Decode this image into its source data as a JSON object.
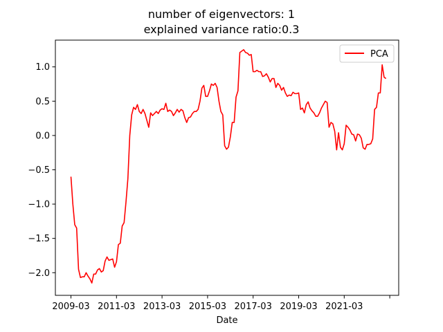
{
  "chart_data": {
    "type": "line",
    "title": "number of eigenvectors: 1",
    "subtitle": "explained variance ratio:0.3",
    "xlabel": "Date",
    "ylabel": "",
    "x_ticks": [
      "2009-03",
      "2011-03",
      "2013-03",
      "2015-03",
      "2017-03",
      "2019-03",
      "2021-03",
      ""
    ],
    "y_ticks": [
      "1.0",
      "0.5",
      "0.0",
      "−0.5",
      "−1.0",
      "−1.5",
      "−2.0"
    ],
    "ylim": [
      -2.33,
      1.39
    ],
    "grid": false,
    "legend_position": "top-right",
    "series": [
      {
        "name": "PCA",
        "color": "#ff0000",
        "x": [
          "2009-03",
          "2009-04",
          "2009-05",
          "2009-06",
          "2009-07",
          "2009-08",
          "2009-09",
          "2009-10",
          "2009-11",
          "2009-12",
          "2010-01",
          "2010-02",
          "2010-03",
          "2010-04",
          "2010-05",
          "2010-06",
          "2010-07",
          "2010-08",
          "2010-09",
          "2010-10",
          "2010-11",
          "2010-12",
          "2011-01",
          "2011-02",
          "2011-03",
          "2011-04",
          "2011-05",
          "2011-06",
          "2011-07",
          "2011-08",
          "2011-09",
          "2011-10",
          "2011-11",
          "2011-12",
          "2012-01",
          "2012-02",
          "2012-03",
          "2012-04",
          "2012-05",
          "2012-06",
          "2012-07",
          "2012-08",
          "2012-09",
          "2012-10",
          "2012-11",
          "2012-12",
          "2013-01",
          "2013-02",
          "2013-03",
          "2013-04",
          "2013-05",
          "2013-06",
          "2013-07",
          "2013-08",
          "2013-09",
          "2013-10",
          "2013-11",
          "2013-12",
          "2014-01",
          "2014-02",
          "2014-03",
          "2014-04",
          "2014-05",
          "2014-06",
          "2014-07",
          "2014-08",
          "2014-09",
          "2014-10",
          "2014-11",
          "2014-12",
          "2015-01",
          "2015-02",
          "2015-03",
          "2015-04",
          "2015-05",
          "2015-06",
          "2015-07",
          "2015-08",
          "2015-09",
          "2015-10",
          "2015-11",
          "2015-12",
          "2016-01",
          "2016-02",
          "2016-03",
          "2016-04",
          "2016-05",
          "2016-06",
          "2016-07",
          "2016-08",
          "2016-09",
          "2016-10",
          "2016-11",
          "2016-12",
          "2017-01",
          "2017-02",
          "2017-03",
          "2017-04",
          "2017-05",
          "2017-06",
          "2017-07",
          "2017-08",
          "2017-09",
          "2017-10",
          "2017-11",
          "2017-12",
          "2018-01",
          "2018-02",
          "2018-03",
          "2018-04",
          "2018-05",
          "2018-06",
          "2018-07",
          "2018-08",
          "2018-09",
          "2018-10",
          "2018-11",
          "2018-12",
          "2019-01",
          "2019-02",
          "2019-03",
          "2019-04",
          "2019-05",
          "2019-06",
          "2019-07",
          "2019-08",
          "2019-09",
          "2019-10",
          "2019-11",
          "2019-12",
          "2020-01",
          "2020-02",
          "2020-03",
          "2020-04",
          "2020-05",
          "2020-06",
          "2020-07",
          "2020-08",
          "2020-09",
          "2020-10",
          "2020-11",
          "2020-12",
          "2021-01",
          "2021-02",
          "2021-03",
          "2021-04",
          "2021-05",
          "2021-06",
          "2021-07",
          "2021-08",
          "2021-09",
          "2021-10",
          "2021-11",
          "2021-12",
          "2022-01",
          "2022-02",
          "2022-03",
          "2022-04",
          "2022-05",
          "2022-06",
          "2022-07",
          "2022-08",
          "2022-09",
          "2022-10",
          "2022-11",
          "2022-12",
          "2023-01"
        ],
        "values": [
          -0.6,
          -1.0,
          -1.3,
          -1.35,
          -1.95,
          -2.07,
          -2.06,
          -2.06,
          -2.0,
          -2.05,
          -2.09,
          -2.15,
          -2.02,
          -2.02,
          -1.96,
          -1.94,
          -1.99,
          -1.97,
          -1.83,
          -1.77,
          -1.82,
          -1.81,
          -1.8,
          -1.92,
          -1.84,
          -1.59,
          -1.57,
          -1.32,
          -1.27,
          -0.97,
          -0.63,
          0.0,
          0.3,
          0.41,
          0.38,
          0.45,
          0.35,
          0.32,
          0.38,
          0.32,
          0.22,
          0.12,
          0.33,
          0.29,
          0.32,
          0.35,
          0.32,
          0.37,
          0.39,
          0.38,
          0.47,
          0.35,
          0.37,
          0.35,
          0.29,
          0.33,
          0.38,
          0.34,
          0.38,
          0.36,
          0.26,
          0.19,
          0.26,
          0.27,
          0.32,
          0.35,
          0.35,
          0.38,
          0.5,
          0.69,
          0.73,
          0.57,
          0.57,
          0.65,
          0.75,
          0.73,
          0.76,
          0.7,
          0.5,
          0.35,
          0.3,
          -0.15,
          -0.2,
          -0.17,
          -0.02,
          0.19,
          0.19,
          0.56,
          0.65,
          1.21,
          1.23,
          1.25,
          1.21,
          1.2,
          1.17,
          1.18,
          0.93,
          0.93,
          0.95,
          0.93,
          0.93,
          0.86,
          0.87,
          0.9,
          0.85,
          0.78,
          0.83,
          0.83,
          0.7,
          0.76,
          0.73,
          0.66,
          0.7,
          0.62,
          0.57,
          0.59,
          0.58,
          0.63,
          0.61,
          0.61,
          0.62,
          0.38,
          0.4,
          0.33,
          0.45,
          0.49,
          0.4,
          0.36,
          0.33,
          0.28,
          0.28,
          0.33,
          0.4,
          0.45,
          0.5,
          0.48,
          0.12,
          0.19,
          0.17,
          0.06,
          -0.21,
          0.04,
          -0.17,
          -0.21,
          -0.12,
          0.15,
          0.12,
          0.08,
          0.02,
          0.01,
          -0.08,
          0.02,
          0.01,
          -0.04,
          -0.18,
          -0.2,
          -0.13,
          -0.13,
          -0.12,
          -0.05,
          0.38,
          0.41,
          0.62,
          0.62,
          1.03,
          0.85,
          0.83
        ]
      }
    ]
  }
}
